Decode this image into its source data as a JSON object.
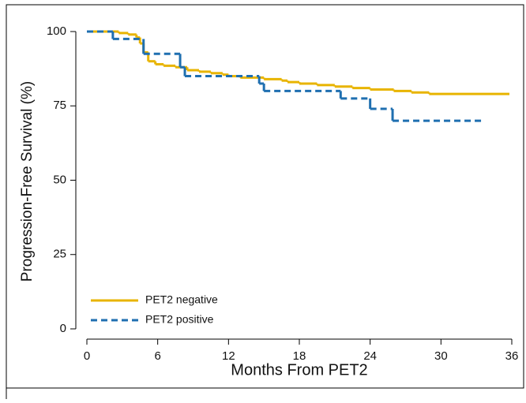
{
  "chart_data": {
    "type": "step",
    "x_label": "Months From PET2",
    "y_label": "Progression-Free Survival (%)",
    "xlim": [
      0,
      36
    ],
    "ylim": [
      0,
      100
    ],
    "xticks": [
      0,
      6,
      12,
      18,
      24,
      30,
      36
    ],
    "yticks": [
      0,
      25,
      50,
      75,
      100
    ],
    "legend": "lower left",
    "series": [
      {
        "name": "PET2 negative",
        "color": "#e8b400",
        "dash": false,
        "x": [
          0,
          2.7,
          3.5,
          4.2,
          4.5,
          4.8,
          5.2,
          5.8,
          6.5,
          7.5,
          8.5,
          9.5,
          10.5,
          11.5,
          12,
          13,
          15,
          16.5,
          17,
          18,
          19.5,
          21,
          22.5,
          24,
          26,
          27.5,
          29,
          35.8
        ],
        "values": [
          100,
          99.5,
          99,
          98,
          96,
          93,
          90,
          89,
          88.5,
          88,
          87,
          86.5,
          86,
          85.5,
          85,
          84.5,
          84,
          83.5,
          83,
          82.5,
          82,
          81.5,
          81,
          80.5,
          80,
          79.5,
          79,
          79
        ]
      },
      {
        "name": "PET2 positive",
        "color": "#1f6fb0",
        "dash": true,
        "x": [
          0,
          2.2,
          4.8,
          7.9,
          8.3,
          14.6,
          15,
          21.5,
          24,
          25.9,
          33.6
        ],
        "values": [
          100,
          97.5,
          92.5,
          88,
          85,
          82.5,
          80,
          77.5,
          74,
          70,
          70
        ]
      }
    ]
  }
}
